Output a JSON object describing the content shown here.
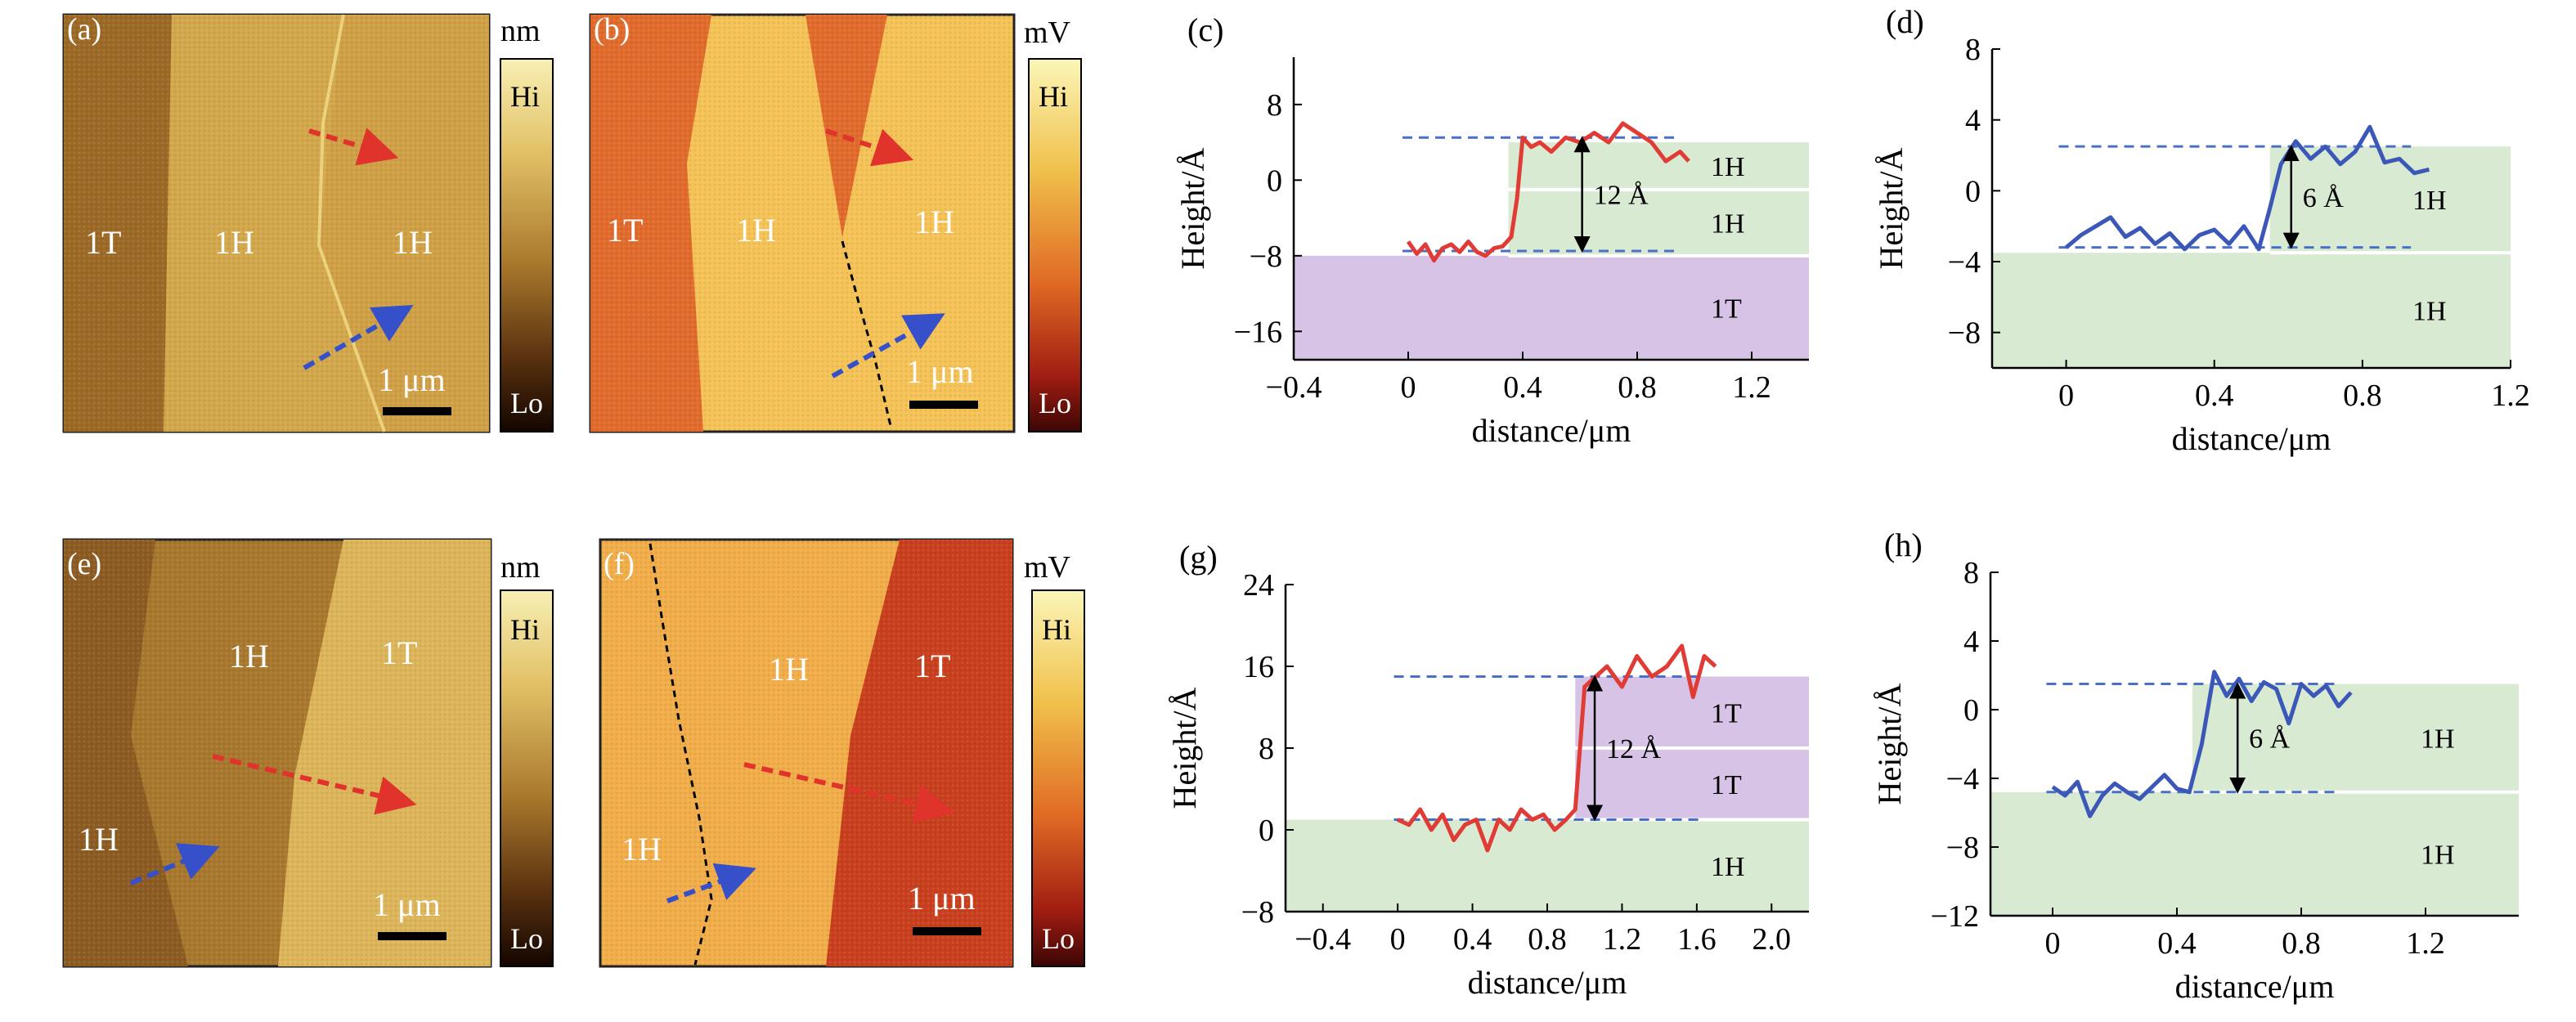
{
  "panels": {
    "a": {
      "label": "(a)",
      "unit": "nm",
      "hi": "Hi",
      "lo": "Lo",
      "scale": "1 μm",
      "regions": [
        "1T",
        "1H",
        "1H"
      ]
    },
    "b": {
      "label": "(b)",
      "unit": "mV",
      "hi": "Hi",
      "lo": "Lo",
      "scale": "1 μm",
      "regions": [
        "1T",
        "1H",
        "1H"
      ]
    },
    "e": {
      "label": "(e)",
      "unit": "nm",
      "hi": "Hi",
      "lo": "Lo",
      "scale": "1 μm",
      "regions": [
        "1H",
        "1T",
        "1H"
      ]
    },
    "f": {
      "label": "(f)",
      "unit": "mV",
      "hi": "Hi",
      "lo": "Lo",
      "scale": "1 μm",
      "regions": [
        "1H",
        "1T",
        "1H"
      ]
    }
  },
  "colors": {
    "tan": "#c9a24a",
    "orange": "#e07a30",
    "red_line": "#e03c35",
    "blue_line": "#3b57b7",
    "green_band": "#d9ead3",
    "purple_band": "#d7c3e6",
    "dashed_blue": "#4a6fc6"
  },
  "chart_data": [
    {
      "panel": "(c)",
      "type": "line",
      "xlabel": "distance/μm",
      "ylabel": "Height/Å",
      "xlim": [
        -0.4,
        1.4
      ],
      "ylim": [
        -19,
        13
      ],
      "xticks": [
        -0.4,
        0,
        0.4,
        0.8,
        1.2
      ],
      "xtick_labels": [
        "−0.4",
        "0",
        "0.4",
        "0.8",
        "1.2"
      ],
      "yticks": [
        8,
        0,
        -8,
        -16
      ],
      "ytick_labels": [
        "8",
        "0",
        "−8",
        "−16"
      ],
      "bands": [
        {
          "y0": 4,
          "y1": -1,
          "color": "green",
          "x0": 0.35,
          "label": "1H"
        },
        {
          "y0": -1,
          "y1": -8,
          "color": "green",
          "x0": 0.35,
          "label": "1H"
        },
        {
          "y0": -8,
          "y1": -19,
          "color": "purple",
          "x0": -0.4,
          "label": "1T"
        }
      ],
      "ref_lines": [
        4.5,
        -7.5
      ],
      "step_label": "12 Å",
      "series": [
        {
          "color": "red",
          "x": [
            0,
            0.03,
            0.06,
            0.09,
            0.12,
            0.15,
            0.18,
            0.21,
            0.24,
            0.27,
            0.3,
            0.33,
            0.36,
            0.38,
            0.4,
            0.43,
            0.46,
            0.5,
            0.55,
            0.6,
            0.65,
            0.7,
            0.75,
            0.8,
            0.85,
            0.9,
            0.95,
            0.98
          ],
          "y": [
            -6.5,
            -7.8,
            -6.8,
            -8.5,
            -7.2,
            -6.8,
            -7.6,
            -6.5,
            -7.6,
            -8,
            -7.2,
            -7,
            -6,
            -2,
            4.5,
            3.5,
            4,
            3,
            4.5,
            4,
            5,
            4,
            6,
            5,
            4,
            2,
            3,
            2
          ]
        }
      ]
    },
    {
      "panel": "(d)",
      "type": "line",
      "xlabel": "distance/μm",
      "ylabel": "Height/Å",
      "xlim": [
        -0.2,
        1.2
      ],
      "ylim": [
        -10,
        8
      ],
      "xticks": [
        0,
        0.4,
        0.8,
        1.2
      ],
      "xtick_labels": [
        "0",
        "0.4",
        "0.8",
        "1.2"
      ],
      "yticks": [
        8,
        4,
        0,
        -4,
        -8
      ],
      "ytick_labels": [
        "8",
        "4",
        "0",
        "−4",
        "−8"
      ],
      "bands": [
        {
          "y0": 2.5,
          "y1": -3.5,
          "color": "green",
          "x0": 0.55,
          "label": "1H"
        },
        {
          "y0": -3.5,
          "y1": -10,
          "color": "green",
          "x0": -0.2,
          "label": "1H"
        }
      ],
      "ref_lines": [
        2.5,
        -3.2
      ],
      "step_label": "6 Å",
      "series": [
        {
          "color": "blue",
          "x": [
            0,
            0.04,
            0.08,
            0.12,
            0.16,
            0.2,
            0.24,
            0.28,
            0.32,
            0.36,
            0.4,
            0.44,
            0.48,
            0.52,
            0.55,
            0.58,
            0.62,
            0.66,
            0.7,
            0.74,
            0.78,
            0.82,
            0.86,
            0.9,
            0.94,
            0.98
          ],
          "y": [
            -3.2,
            -2.5,
            -2.0,
            -1.5,
            -2.6,
            -2.1,
            -3.0,
            -2.4,
            -3.3,
            -2.5,
            -2.2,
            -3.0,
            -2.0,
            -3.3,
            -1.0,
            1.5,
            2.8,
            1.8,
            2.5,
            1.5,
            2.2,
            3.6,
            1.6,
            1.8,
            1.0,
            1.2
          ]
        }
      ]
    },
    {
      "panel": "(g)",
      "type": "line",
      "xlabel": "distance/μm",
      "ylabel": "Height/Å",
      "xlim": [
        -0.6,
        2.2
      ],
      "ylim": [
        -8,
        24
      ],
      "xticks": [
        -0.4,
        0,
        0.4,
        0.8,
        1.2,
        1.6,
        2.0
      ],
      "xtick_labels": [
        "−0.4",
        "0",
        "0.4",
        "0.8",
        "1.2",
        "1.6",
        "2.0"
      ],
      "yticks": [
        24,
        16,
        8,
        0,
        -8
      ],
      "ytick_labels": [
        "24",
        "16",
        "8",
        "0",
        "−8"
      ],
      "bands": [
        {
          "y0": 15,
          "y1": 8,
          "color": "purple",
          "x0": 0.95,
          "label": "1T"
        },
        {
          "y0": 8,
          "y1": 1,
          "color": "purple",
          "x0": 0.95,
          "label": "1T"
        },
        {
          "y0": 1,
          "y1": -8,
          "color": "green",
          "x0": -0.6,
          "label": "1H"
        }
      ],
      "ref_lines": [
        15,
        1
      ],
      "step_label": "12 Å",
      "series": [
        {
          "color": "red",
          "x": [
            0,
            0.06,
            0.12,
            0.18,
            0.24,
            0.3,
            0.36,
            0.42,
            0.48,
            0.54,
            0.6,
            0.66,
            0.72,
            0.78,
            0.84,
            0.9,
            0.95,
            1.0,
            1.06,
            1.12,
            1.2,
            1.28,
            1.36,
            1.44,
            1.52,
            1.58,
            1.64,
            1.7
          ],
          "y": [
            1,
            0.5,
            2,
            0,
            1.5,
            -1,
            0.5,
            1,
            -2,
            1,
            0,
            2,
            1,
            1.5,
            0,
            1,
            2,
            14,
            15,
            16,
            14,
            17,
            15,
            16,
            18,
            13,
            17,
            16
          ]
        }
      ]
    },
    {
      "panel": "(h)",
      "type": "line",
      "xlabel": "distance/μm",
      "ylabel": "Height/Å",
      "xlim": [
        -0.2,
        1.5
      ],
      "ylim": [
        -12,
        8
      ],
      "xticks": [
        0,
        0.4,
        0.8,
        1.2
      ],
      "xtick_labels": [
        "0",
        "0.4",
        "0.8",
        "1.2"
      ],
      "yticks": [
        8,
        4,
        0,
        -4,
        -8,
        -12
      ],
      "ytick_labels": [
        "8",
        "4",
        "0",
        "−4",
        "−8",
        "−12"
      ],
      "bands": [
        {
          "y0": 1.5,
          "y1": -4.8,
          "color": "green",
          "x0": 0.45,
          "label": "1H"
        },
        {
          "y0": -4.8,
          "y1": -12,
          "color": "green",
          "x0": -0.2,
          "label": "1H"
        }
      ],
      "ref_lines": [
        1.5,
        -4.8
      ],
      "step_label": "6 Å",
      "series": [
        {
          "color": "blue",
          "x": [
            0,
            0.04,
            0.08,
            0.12,
            0.16,
            0.2,
            0.24,
            0.28,
            0.32,
            0.36,
            0.4,
            0.44,
            0.48,
            0.52,
            0.56,
            0.6,
            0.64,
            0.68,
            0.72,
            0.76,
            0.8,
            0.84,
            0.88,
            0.92,
            0.96
          ],
          "y": [
            -4.5,
            -5,
            -4.2,
            -6.2,
            -5,
            -4.3,
            -4.8,
            -5.2,
            -4.5,
            -3.8,
            -4.6,
            -4.8,
            -2,
            2.2,
            0.8,
            1.8,
            0.5,
            1.6,
            1.2,
            -0.8,
            1.5,
            0.8,
            1.4,
            0.2,
            1
          ]
        }
      ]
    }
  ]
}
